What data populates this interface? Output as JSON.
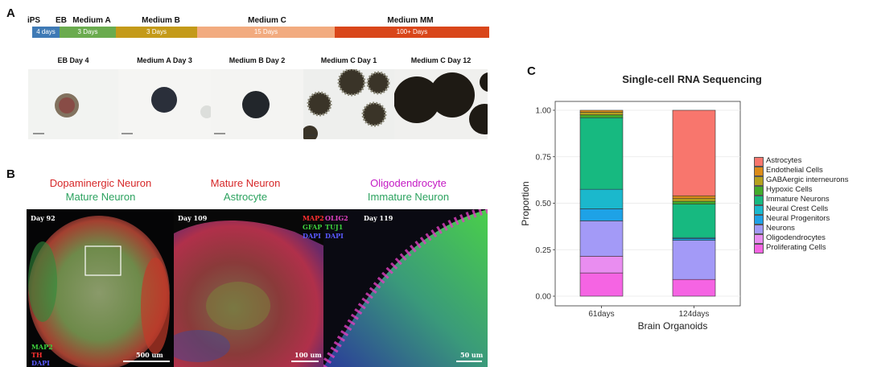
{
  "panel_a": {
    "letter": "A",
    "timeline": [
      {
        "stage": "iPS",
        "duration": "4 days",
        "color": "#3f7ab5"
      },
      {
        "stage": "EB",
        "duration": "",
        "color": "#3f7ab5"
      },
      {
        "stage": "Medium A",
        "duration": "3 Days",
        "color": "#6aab4e"
      },
      {
        "stage": "Medium B",
        "duration": "3 Days",
        "color": "#c49a19"
      },
      {
        "stage": "Medium C",
        "duration": "15 Days",
        "color": "#f2ab7f"
      },
      {
        "stage": "Medium MM",
        "duration": "100+ Days",
        "color": "#d9461a"
      }
    ],
    "images": [
      "EB Day 4",
      "Medium A Day 3",
      "Medium B Day 2",
      "Medium C Day 1",
      "Medium C Day 12"
    ]
  },
  "panel_b": {
    "letter": "B",
    "titles": [
      {
        "line1": "Dopaminergic Neuron",
        "line2": "Mature Neuron",
        "color1": "#d62728",
        "color2": "#2ca25f"
      },
      {
        "line1": "Mature Neuron",
        "line2": "Astrocyte",
        "color1": "#d62728",
        "color2": "#2ca25f"
      },
      {
        "line1": "Oligodendrocyte",
        "line2": "Immature Neuron",
        "color1": "#c41ac4",
        "color2": "#2ca25f"
      }
    ],
    "micro": [
      {
        "day": "Day 92",
        "scale": "500 um"
      },
      {
        "day": "Day 109",
        "scale": "100 um"
      },
      {
        "day": "Day 119",
        "scale": "50 um"
      }
    ],
    "stain_legend_1": [
      "MAP2",
      "TH",
      "DAPI"
    ],
    "stain_legend_2": [
      [
        "MAP2",
        "OLIG2"
      ],
      [
        "GFAP",
        "TUJ1"
      ],
      [
        "DAPI",
        "DAPI"
      ]
    ]
  },
  "panel_c": {
    "letter": "C"
  },
  "chart_data": {
    "type": "bar",
    "stacked": true,
    "title": "Single-cell RNA Sequencing",
    "xlabel": "Brain Organoids",
    "ylabel": "Proportion",
    "categories": [
      "61days",
      "124days"
    ],
    "ylim": [
      0,
      1
    ],
    "yticks": [
      "0.00",
      "0.25",
      "0.50",
      "0.75",
      "1.00"
    ],
    "series": [
      {
        "name": "Proliferating Cells",
        "color": "#f564e3",
        "values": [
          0.125,
          0.09
        ]
      },
      {
        "name": "Oligodendrocytes",
        "color": "#e98df0",
        "values": [
          0.09,
          0.0
        ]
      },
      {
        "name": "Neurons",
        "color": "#a39af7",
        "values": [
          0.19,
          0.21
        ]
      },
      {
        "name": "Neural Progenitors",
        "color": "#1ea2e6",
        "values": [
          0.065,
          0.01
        ]
      },
      {
        "name": "Neural Crest Cells",
        "color": "#1bb8cc",
        "values": [
          0.105,
          0.005
        ]
      },
      {
        "name": "Immature Neurons",
        "color": "#17b980",
        "values": [
          0.385,
          0.18
        ]
      },
      {
        "name": "Hypoxic Cells",
        "color": "#43ab2c",
        "values": [
          0.015,
          0.015
        ]
      },
      {
        "name": "GABAergic interneurons",
        "color": "#b5a01f",
        "values": [
          0.015,
          0.015
        ]
      },
      {
        "name": "Endothelial Cells",
        "color": "#dc8c1a",
        "values": [
          0.01,
          0.015
        ]
      },
      {
        "name": "Astrocytes",
        "color": "#f8766d",
        "values": [
          0.0,
          0.46
        ]
      }
    ],
    "legend": [
      "Astrocytes",
      "Endothelial Cells",
      "GABAergic interneurons",
      "Hypoxic Cells",
      "Immature Neurons",
      "Neural Crest Cells",
      "Neural Progenitors",
      "Neurons",
      "Oligodendrocytes",
      "Proliferating Cells"
    ],
    "legend_colors": [
      "#f8766d",
      "#dc8c1a",
      "#b5a01f",
      "#43ab2c",
      "#17b980",
      "#1bb8cc",
      "#1ea2e6",
      "#a39af7",
      "#e98df0",
      "#f564e3"
    ]
  }
}
